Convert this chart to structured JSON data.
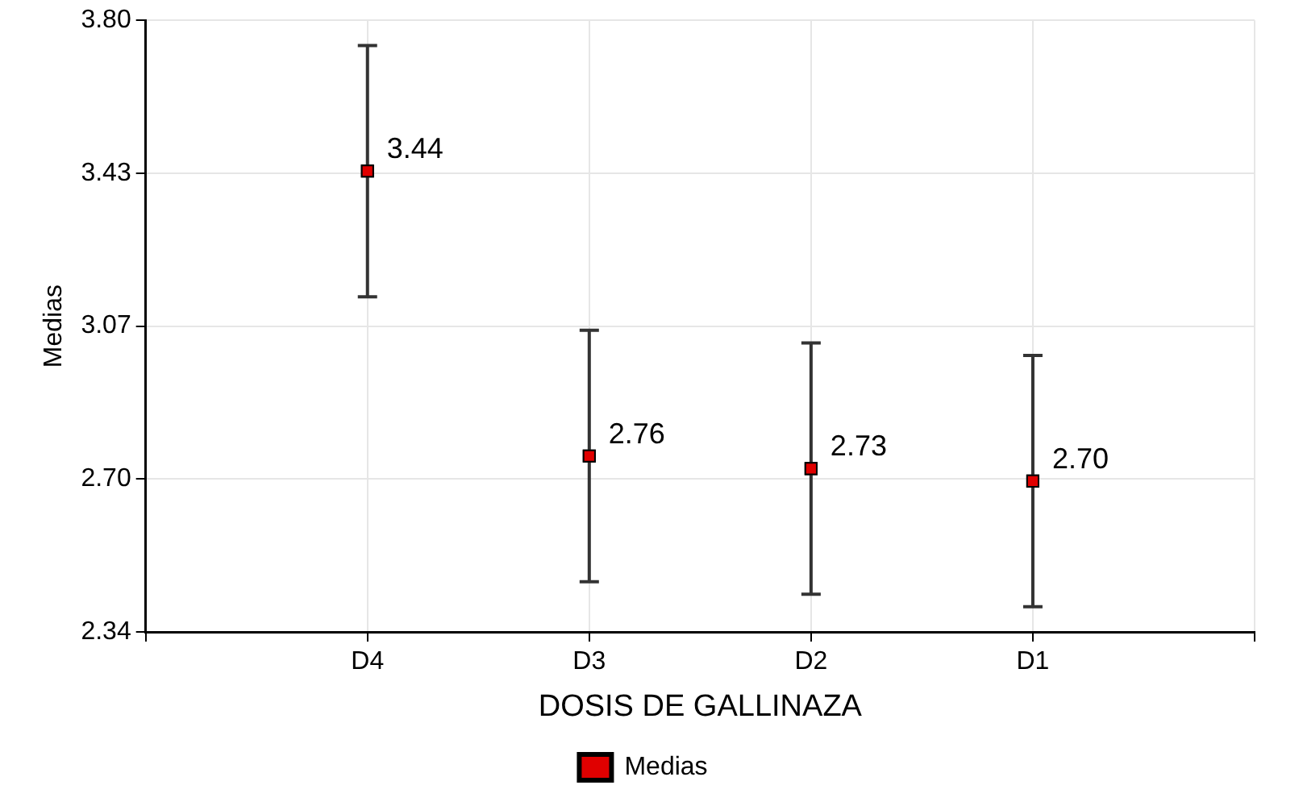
{
  "chart_data": {
    "type": "scatter",
    "xlabel": "DOSIS DE GALLINAZA",
    "ylabel": "Medias",
    "categories": [
      null,
      "D4",
      "D3",
      "D2",
      "D1",
      null
    ],
    "series": [
      {
        "name": "Medias",
        "color": "#e00000",
        "values": [
          null,
          3.44,
          2.76,
          2.73,
          2.7,
          null
        ],
        "errors": [
          null,
          0.3,
          0.3,
          0.3,
          0.3,
          null
        ],
        "value_labels": [
          null,
          "3.44",
          "2.76",
          "2.73",
          "2.70",
          null
        ]
      }
    ],
    "ylim": [
      2.34,
      3.8
    ],
    "yticks": [
      2.34,
      {
        "value": 2.705,
        "label": "2.70"
      },
      3.07,
      {
        "value": 3.435,
        "label": "3.43"
      },
      {
        "value": 3.8,
        "label": "3.80"
      }
    ],
    "grid": true,
    "legend": "bottom",
    "marker": "square"
  }
}
